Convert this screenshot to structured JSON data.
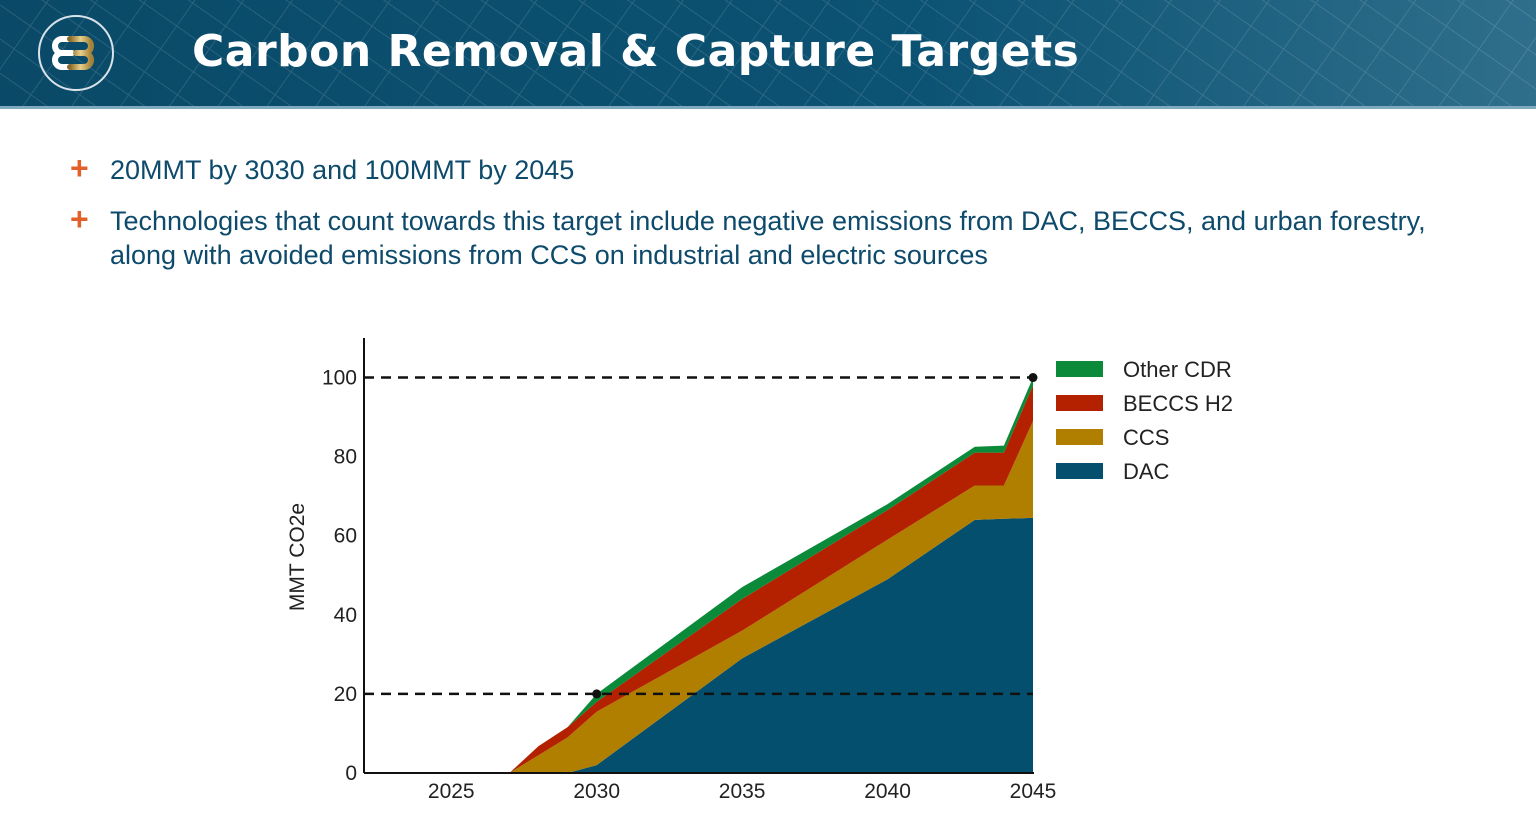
{
  "header": {
    "title": "Carbon Removal & Capture Targets",
    "logo_text": "EB"
  },
  "bullets": [
    "20MMT by 3030 and 100MMT by 2045",
    "Technologies that count towards this target include negative emissions from DAC, BECCS, and urban forestry, along with avoided emissions from CCS on industrial and electric sources"
  ],
  "colors": {
    "header": "#0c5273",
    "bullet_marker": "#e2612b",
    "text": "#0d4a6b"
  },
  "chart_data": {
    "type": "area",
    "stacked": true,
    "title": "",
    "xlabel": "",
    "ylabel": "MMT CO2e",
    "xlim": [
      2022,
      2045
    ],
    "ylim": [
      0,
      110
    ],
    "xticks": [
      2025,
      2030,
      2035,
      2040,
      2045
    ],
    "yticks": [
      0,
      20,
      40,
      60,
      80,
      100
    ],
    "grid": false,
    "legend_position": "right",
    "x": [
      2027,
      2028,
      2029,
      2030,
      2035,
      2040,
      2043,
      2044,
      2045
    ],
    "series": [
      {
        "name": "DAC",
        "color": "#044f6e",
        "values": [
          0,
          0,
          0,
          2,
          29,
          49,
          64,
          64.3,
          64.5
        ]
      },
      {
        "name": "CCS",
        "color": "#b07f00",
        "values": [
          0,
          4.5,
          9,
          13.5,
          7,
          10,
          8.7,
          8.4,
          24.5
        ]
      },
      {
        "name": "BECCS H2",
        "color": "#b32100",
        "values": [
          0,
          2.3,
          2.6,
          2.5,
          8,
          7.5,
          8.3,
          8.3,
          9
        ]
      },
      {
        "name": "Other CDR",
        "color": "#0b8a3a",
        "values": [
          0,
          0,
          0,
          2,
          3,
          1.5,
          1.5,
          1.8,
          2
        ]
      }
    ],
    "legend_order": [
      "Other CDR",
      "BECCS H2",
      "CCS",
      "DAC"
    ],
    "reference_lines": [
      {
        "y": 20,
        "style": "dashed",
        "marker": {
          "x": 2030,
          "y": 20
        }
      },
      {
        "y": 100,
        "style": "dashed",
        "marker": {
          "x": 2045,
          "y": 100
        }
      }
    ]
  }
}
